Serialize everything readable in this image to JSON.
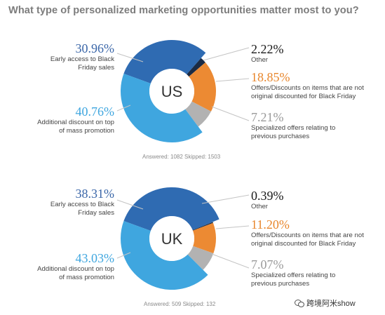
{
  "title": "What type of personalized marketing opportunities matter most to you?",
  "colors": {
    "early_access": "#2f6bb2",
    "additional_discount": "#3fa6df",
    "other": "#1a2b45",
    "offers_discounts": "#ec8a33",
    "specialized": "#b2b2b2",
    "label_blue": "#3a66a8",
    "label_lightblue": "#3fa6df",
    "label_dark": "#1a1a1a",
    "label_orange": "#e8862c",
    "label_grey": "#9a9a9a"
  },
  "chart_data": [
    {
      "type": "pie",
      "center_label": "US",
      "categories": [
        "Early access to Black Friday sales",
        "Other",
        "Offers/Discounts on items that are not original discounted for Black Friday",
        "Specialized offers relating to previous purchases",
        "Additional discount on top of mass promotion"
      ],
      "values": [
        30.96,
        2.22,
        18.85,
        7.21,
        40.76
      ],
      "value_labels": [
        "30.96%",
        "2.22%",
        "18.85%",
        "7.21%",
        "40.76%"
      ],
      "answered": "Answered: 1082  Skipped: 1503"
    },
    {
      "type": "pie",
      "center_label": "UK",
      "categories": [
        "Early access to Black Friday sales",
        "Other",
        "Offers/Discounts on items that are not original discounted for Black Friday",
        "Specialized offers relating to previous purchases",
        "Additional discount on top of mass promotion"
      ],
      "values": [
        38.31,
        0.39,
        11.2,
        7.07,
        43.03
      ],
      "value_labels": [
        "38.31%",
        "0.39%",
        "11.20%",
        "7.07%",
        "43.03%"
      ],
      "answered": "Answered: 509  Skipped: 132"
    }
  ],
  "labels": {
    "early_access": "Early access to Black Friday sales",
    "other": "Other",
    "offers": "Offers/Discounts on items that are not original discounted for Black Friday",
    "specialized": "Specialized offers relating to previous purchases",
    "additional": "Additional discount on top of mass promotion"
  },
  "watermark": "跨境阿米show"
}
